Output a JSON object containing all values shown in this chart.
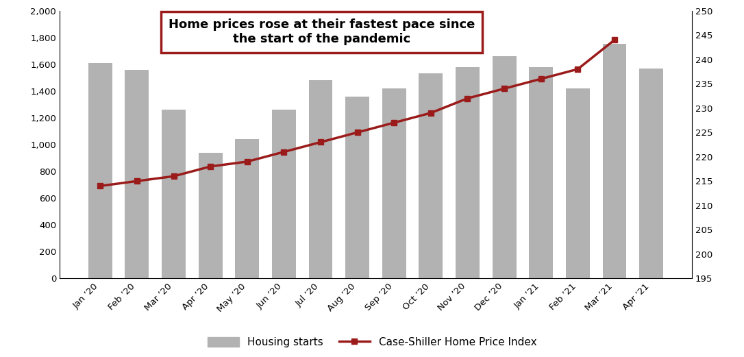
{
  "categories": [
    "Jan ’20",
    "Feb ’20",
    "Mar ’20",
    "Apr ’20",
    "May ’20",
    "Jun ’20",
    "Jul ’20",
    "Aug ’20",
    "Sep ’20",
    "Oct ’20",
    "Nov ’20",
    "Dec ’20",
    "Jan ’21",
    "Feb ’21",
    "Mar ’21",
    "Apr ’21"
  ],
  "housing_starts": [
    1610,
    1560,
    1260,
    940,
    1040,
    1260,
    1480,
    1360,
    1420,
    1530,
    1580,
    1660,
    1580,
    1420,
    1750,
    1570
  ],
  "case_shiller": [
    214,
    215,
    216,
    218,
    219,
    221,
    223,
    225,
    227,
    229,
    232,
    234,
    236,
    238,
    244,
    null
  ],
  "bar_color": "#b2b2b2",
  "line_color": "#9b1b1b",
  "left_ylim": [
    0,
    2000
  ],
  "right_ylim": [
    195,
    250
  ],
  "left_yticks": [
    0,
    200,
    400,
    600,
    800,
    1000,
    1200,
    1400,
    1600,
    1800,
    2000
  ],
  "right_yticks": [
    195,
    200,
    205,
    210,
    215,
    220,
    225,
    230,
    235,
    240,
    245,
    250
  ],
  "title_line1": "Home prices rose at their fastest pace since",
  "title_line2": "the start of the pandemic",
  "legend_bar_label": "Housing starts",
  "legend_line_label": "Case-Shiller Home Price Index",
  "background_color": "#ffffff",
  "box_edge_color": "#9b1b1b",
  "title_fontsize": 13,
  "tick_fontsize": 9.5,
  "legend_fontsize": 11
}
